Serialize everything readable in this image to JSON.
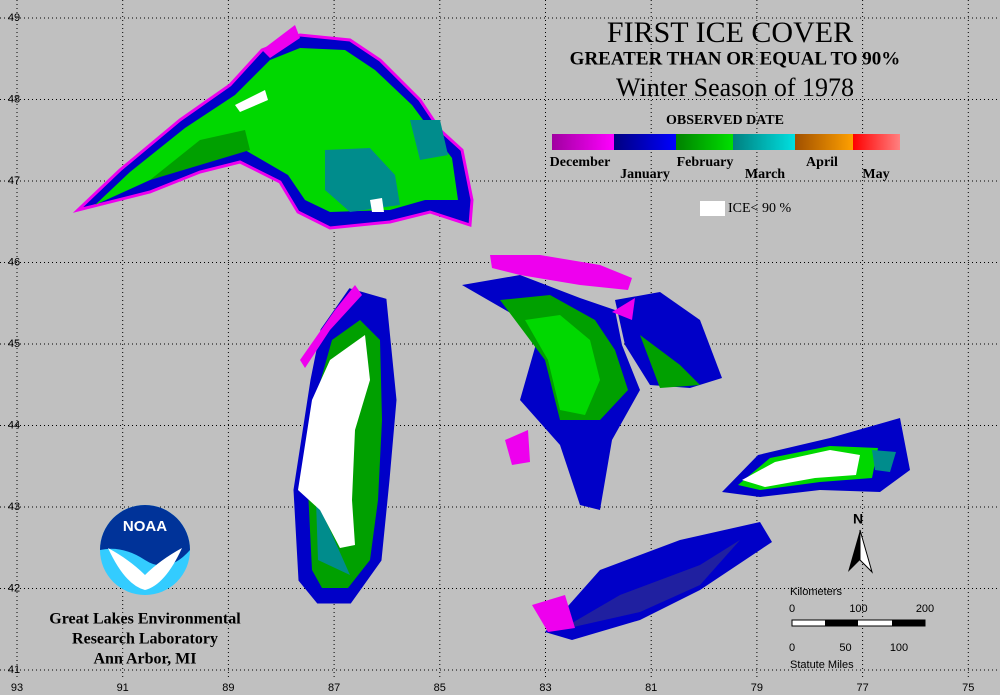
{
  "title": "FIRST ICE COVER",
  "subtitle": "GREATER THAN OR EQUAL TO 90%",
  "season": "Winter Season of 1978",
  "legend": {
    "title": "OBSERVED DATE",
    "months": [
      "December",
      "January",
      "February",
      "March",
      "April",
      "May"
    ],
    "ice_note": "ICE< 90 %"
  },
  "latitude_labels": [
    49,
    48,
    47,
    46,
    45,
    44,
    43,
    42,
    41
  ],
  "longitude_labels": [
    93,
    91,
    89,
    87,
    85,
    83,
    81,
    79,
    77,
    75
  ],
  "scale": {
    "km_label": "Kilometers",
    "km_ticks": [
      0,
      100,
      200
    ],
    "mile_label": "Statute Miles",
    "mile_ticks": [
      0,
      50,
      100
    ]
  },
  "north": "N",
  "logo": "NOAA",
  "credit": [
    "Great Lakes Environmental",
    "Research Laboratory",
    "Ann Arbor, MI"
  ]
}
